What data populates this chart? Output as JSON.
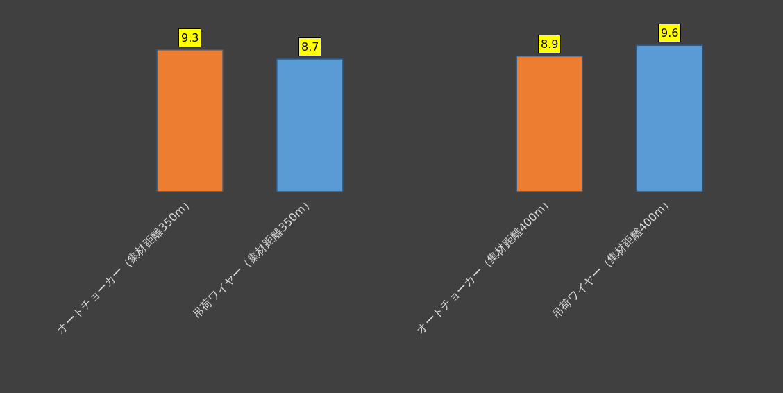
{
  "chart_data": {
    "type": "bar",
    "categories": [
      "オートチョーカー（集材距離350m）",
      "吊荷ワイヤー（集材距離350m）",
      null,
      "オートチョーカー（集材距離400m）",
      "吊荷ワイヤー（集材距離400m）"
    ],
    "values": [
      9.3,
      8.7,
      null,
      8.9,
      9.6
    ],
    "colors": [
      "#ed7d31",
      "#5b9bd5",
      null,
      "#ed7d31",
      "#5b9bd5"
    ],
    "data_labels": true
  }
}
